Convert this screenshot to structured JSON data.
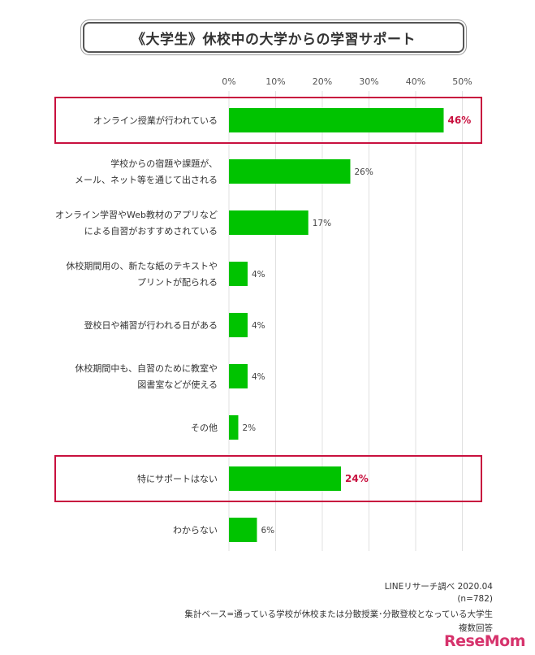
{
  "title": "《大学生》休校中の大学からの学習サポート",
  "chart_data": {
    "type": "bar",
    "orientation": "horizontal",
    "categories": [
      [
        "オンライン授業が行われている"
      ],
      [
        "学校からの宿題や課題が、",
        "メール、ネット等を通じて出される"
      ],
      [
        "オンライン学習やWeb教材のアプリなど",
        "による自習がおすすめされている"
      ],
      [
        "休校期間用の、新たな紙のテキストや",
        "プリントが配られる"
      ],
      [
        "登校日や補習が行われる日がある"
      ],
      [
        "休校期間中も、自習のために教室や",
        "図書室などが使える"
      ],
      [
        "その他"
      ],
      [
        "特にサポートはない"
      ],
      [
        "わからない"
      ]
    ],
    "values": [
      46,
      26,
      17,
      4,
      4,
      4,
      2,
      24,
      6
    ],
    "value_labels": [
      "46%",
      "26%",
      "17%",
      "4%",
      "4%",
      "4%",
      "2%",
      "24%",
      "6%"
    ],
    "highlighted": [
      0,
      7
    ],
    "xlim": [
      0,
      50
    ],
    "ticks": [
      0,
      10,
      20,
      30,
      40,
      50
    ],
    "tick_labels": [
      "0%",
      "10%",
      "20%",
      "30%",
      "40%",
      "50%"
    ],
    "grid": true,
    "bar_color": "#00c300",
    "highlight_color": "#c8103e",
    "grid_color": "#e0e0e0"
  },
  "footnotes": {
    "source": "LINEリサーチ調べ 2020.04",
    "n": "(n=782)",
    "base": "集計ベース=通っている学校が休校または分散授業･分散登校となっている大学生",
    "multi": "複数回答"
  },
  "logo": "ReseMom"
}
